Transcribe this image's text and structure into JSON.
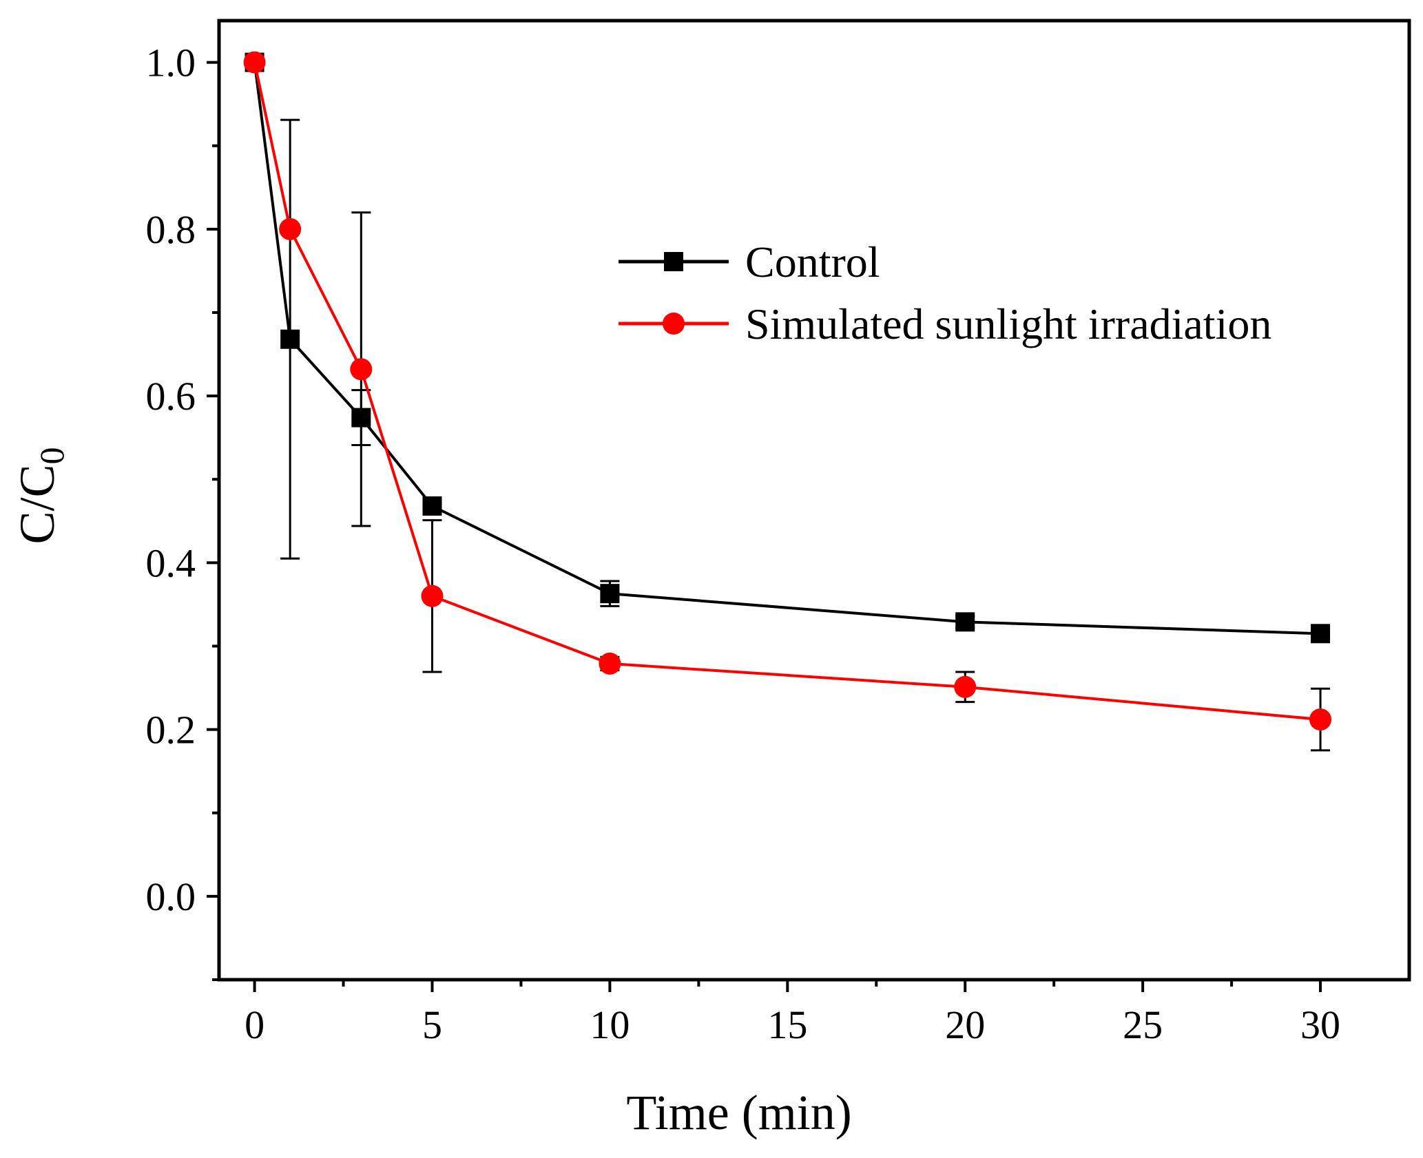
{
  "chart_data": {
    "type": "line",
    "title": "",
    "xlabel": "Time (min)",
    "ylabel_main": "C/C",
    "ylabel_sub": "0",
    "xlim": [
      -1,
      32.5
    ],
    "ylim": [
      -0.1,
      1.05
    ],
    "xticks": [
      0,
      5,
      10,
      15,
      20,
      25,
      30
    ],
    "xtick_labels": [
      "0",
      "5",
      "10",
      "15",
      "20",
      "25",
      "30"
    ],
    "yticks": [
      0.0,
      0.2,
      0.4,
      0.6,
      0.8,
      1.0
    ],
    "ytick_labels": [
      "0.0",
      "0.2",
      "0.4",
      "0.6",
      "0.8",
      "1.0"
    ],
    "grid": false,
    "legend_position": "upper-right",
    "series": [
      {
        "name": "Control",
        "color": "#000000",
        "marker": "square",
        "x": [
          0,
          1,
          3,
          5,
          10,
          20,
          30
        ],
        "y": [
          1.0,
          0.668,
          0.574,
          0.468,
          0.363,
          0.329,
          0.315
        ],
        "err": [
          0.0,
          0.263,
          0.033,
          0.01,
          0.015,
          0.007,
          0.006
        ]
      },
      {
        "name": "Simulated sunlight irradiation",
        "color": "#ff0000",
        "marker": "circle",
        "x": [
          0,
          1,
          3,
          5,
          10,
          20,
          30
        ],
        "y": [
          1.0,
          0.8,
          0.632,
          0.36,
          0.279,
          0.251,
          0.212
        ],
        "err": [
          0.0,
          0.0,
          0.188,
          0.091,
          0.008,
          0.018,
          0.037
        ]
      }
    ]
  }
}
